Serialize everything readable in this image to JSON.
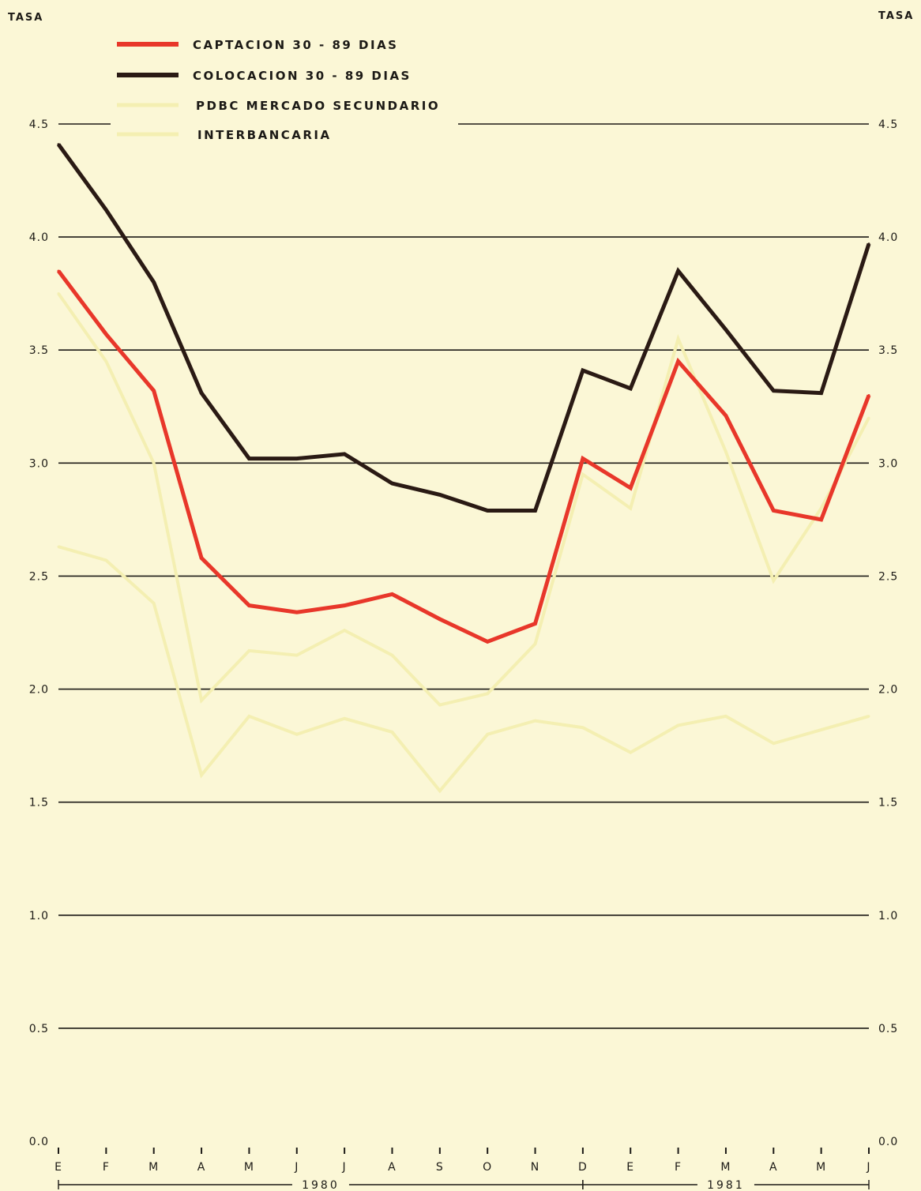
{
  "chart_data": {
    "type": "line",
    "title": "",
    "ylabel_left": "TASA",
    "ylabel_right": "TASA",
    "ylim": [
      0.0,
      4.5
    ],
    "y_ticks": [
      "0.0",
      "0.5",
      "1.0",
      "1.5",
      "2.0",
      "2.5",
      "3.0",
      "3.5",
      "4.0",
      "4.5"
    ],
    "y_tick_values": [
      0.0,
      0.5,
      1.0,
      1.5,
      2.0,
      2.5,
      3.0,
      3.5,
      4.0,
      4.5
    ],
    "grid": true,
    "legend_position": "top-left",
    "categories": [
      "E",
      "F",
      "M",
      "A",
      "M",
      "J",
      "J",
      "A",
      "S",
      "O",
      "N",
      "D",
      "E",
      "F",
      "M",
      "A",
      "M",
      "J"
    ],
    "year_groups": [
      {
        "label": "1980",
        "from": 0,
        "to": 11
      },
      {
        "label": "1981",
        "from": 11,
        "to": 17
      }
    ],
    "series": [
      {
        "name": "CAPTACION  30 - 89 DIAS",
        "color": "#e8372a",
        "values": [
          3.85,
          3.57,
          3.32,
          2.58,
          2.37,
          2.34,
          2.37,
          2.42,
          2.31,
          2.21,
          2.29,
          3.02,
          2.89,
          3.45,
          3.21,
          2.79,
          2.75,
          3.3
        ]
      },
      {
        "name": "COLOCACION  30 - 89 DIAS",
        "color": "#2a1a14",
        "values": [
          4.41,
          4.12,
          3.8,
          3.31,
          3.02,
          3.02,
          3.04,
          2.91,
          2.86,
          2.79,
          2.79,
          3.41,
          3.33,
          3.85,
          3.59,
          3.32,
          3.31,
          3.97
        ]
      },
      {
        "name": "PDBC  MERCADO  SECUNDARIO",
        "color": "#f4efb2",
        "values": [
          3.75,
          3.45,
          3.0,
          1.95,
          2.17,
          2.15,
          2.26,
          2.15,
          1.93,
          1.98,
          2.2,
          2.95,
          2.8,
          3.55,
          3.05,
          2.48,
          2.8,
          3.2
        ]
      },
      {
        "name": "INTERBANCARIA",
        "color": "#f4efb2",
        "values": [
          2.63,
          2.57,
          2.38,
          1.62,
          1.88,
          1.8,
          1.87,
          1.81,
          1.55,
          1.8,
          1.86,
          1.83,
          1.72,
          1.84,
          1.88,
          1.76,
          1.82,
          1.88
        ]
      }
    ]
  }
}
